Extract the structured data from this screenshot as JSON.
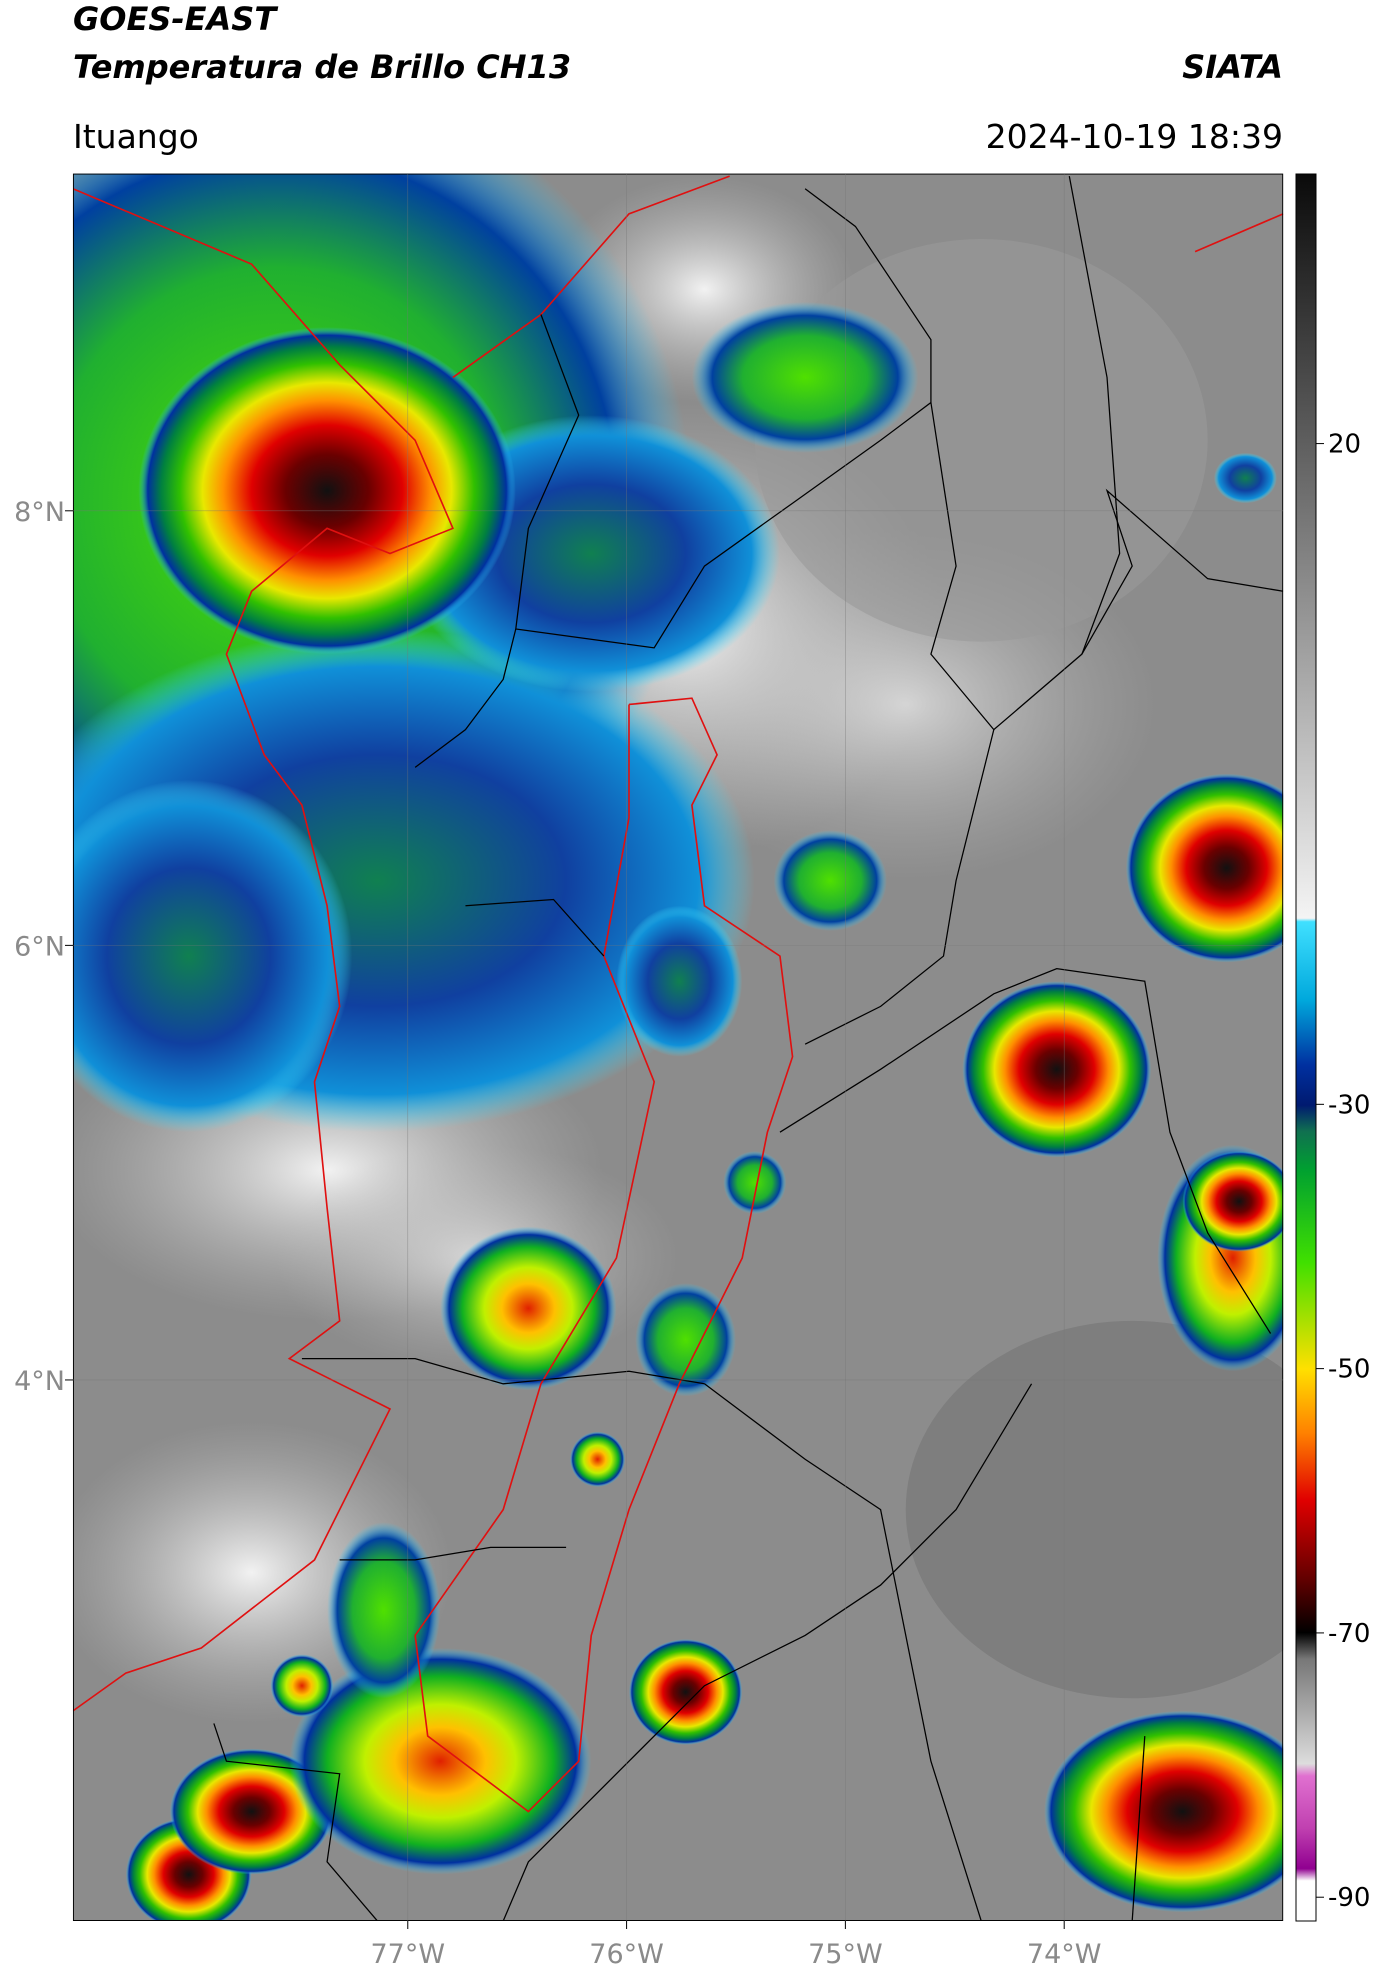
{
  "header": {
    "title": "GOES-EAST",
    "subtitle": "Temperatura de Brillo CH13",
    "source": "SIATA",
    "location": "Ituango",
    "datetime": "2024-10-19 18:39"
  },
  "map": {
    "xlim": [
      -78.53,
      -73.0
    ],
    "ylim": [
      1.51,
      9.55
    ],
    "xticks": [
      {
        "value": -77,
        "label": "77°W"
      },
      {
        "value": -76,
        "label": "76°W"
      },
      {
        "value": -75,
        "label": "75°W"
      },
      {
        "value": -74,
        "label": "74°W"
      }
    ],
    "yticks": [
      {
        "value": 8,
        "label": "8°N"
      },
      {
        "value": 6,
        "label": "6°N"
      },
      {
        "value": 4,
        "label": "4°N"
      }
    ],
    "grid": true
  },
  "colorbar": {
    "lim": [
      -91.8,
      40.4
    ],
    "ticks": [
      20,
      -30,
      -50,
      -70,
      -90
    ]
  }
}
